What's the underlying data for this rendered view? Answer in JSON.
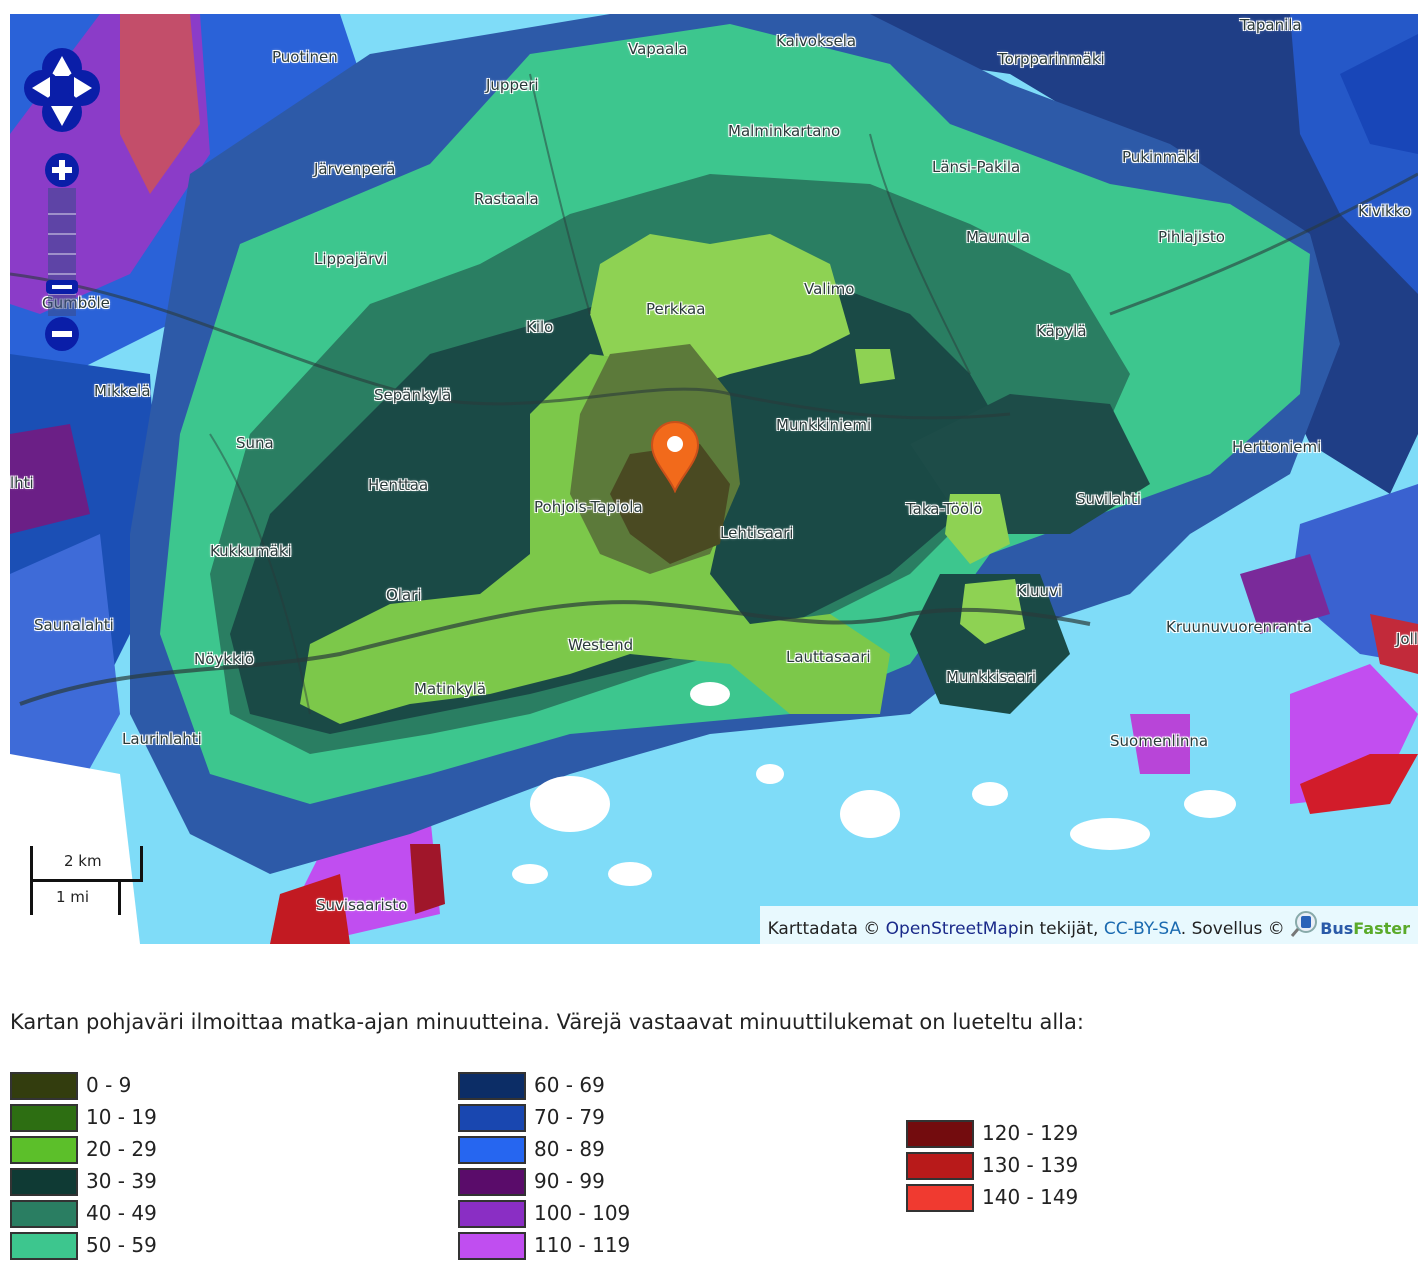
{
  "map": {
    "places": [
      {
        "name": "Puotinen"
      },
      {
        "name": "Vapaala"
      },
      {
        "name": "Kaivoksela"
      },
      {
        "name": "Tapanila"
      },
      {
        "name": "Jupperi"
      },
      {
        "name": "Torpparinmäki"
      },
      {
        "name": "Malminkartano"
      },
      {
        "name": "Järvenperä"
      },
      {
        "name": "Länsi-Pakila"
      },
      {
        "name": "Pukinmäki"
      },
      {
        "name": "Rastaala"
      },
      {
        "name": "Kivikko"
      },
      {
        "name": "Maunula"
      },
      {
        "name": "Pihlajisto"
      },
      {
        "name": "Lippajärvi"
      },
      {
        "name": "Valimo"
      },
      {
        "name": "Perkkaa"
      },
      {
        "name": "Gumböle"
      },
      {
        "name": "Kilo"
      },
      {
        "name": "Käpylä"
      },
      {
        "name": "Mikkelä"
      },
      {
        "name": "Sepänkylä"
      },
      {
        "name": "Munkkiniemi"
      },
      {
        "name": "Suna"
      },
      {
        "name": "Herttoniemi"
      },
      {
        "name": "Henttaa"
      },
      {
        "name": "lhti"
      },
      {
        "name": "Pohjois-Tapiola"
      },
      {
        "name": "Suvilahti"
      },
      {
        "name": "Taka-Töölö"
      },
      {
        "name": "Lehtisaari"
      },
      {
        "name": "Kukkumäki"
      },
      {
        "name": "Kluuvi"
      },
      {
        "name": "Olari"
      },
      {
        "name": "Saunalahti"
      },
      {
        "name": "Kruunuvuorenranta"
      },
      {
        "name": "Joll"
      },
      {
        "name": "Westend"
      },
      {
        "name": "Nöykkiö"
      },
      {
        "name": "Lauttasaari"
      },
      {
        "name": "Matinkylä"
      },
      {
        "name": "Munkkisaari"
      },
      {
        "name": "Laurinlahti"
      },
      {
        "name": "Suomenlinna"
      },
      {
        "name": "Suvisaaristo"
      }
    ],
    "scale": {
      "km_label": "2 km",
      "mi_label": "1 mi"
    },
    "attribution": {
      "prefix": "Karttadata © ",
      "osm_link": "OpenStreetMap",
      "osm_suffix": "in tekijät, ",
      "license_link": "CC-BY-SA",
      "app_text": ". Sovellus © ",
      "brand": "BusFaster"
    },
    "colors": {
      "water": "#7fdcf8",
      "marker": "#f26a1b"
    }
  },
  "caption": "Kartan pohjaväri ilmoittaa matka-ajan minuutteina. Värejä vastaavat minuuttilukemat on lueteltu alla:",
  "legend": {
    "col1": [
      {
        "label": "0 - 9",
        "color": "#333d0e"
      },
      {
        "label": "10 - 19",
        "color": "#2d6e12"
      },
      {
        "label": "20 - 29",
        "color": "#5cbf2a"
      },
      {
        "label": "30 - 39",
        "color": "#0f3a34"
      },
      {
        "label": "40 - 49",
        "color": "#2a7e62"
      },
      {
        "label": "50 - 59",
        "color": "#3dc68e"
      }
    ],
    "col2": [
      {
        "label": "60 - 69",
        "color": "#0c2d66"
      },
      {
        "label": "70 - 79",
        "color": "#1947b0"
      },
      {
        "label": "80 - 89",
        "color": "#2666f0"
      },
      {
        "label": "90 - 99",
        "color": "#5a0c6a"
      },
      {
        "label": "100 - 109",
        "color": "#8a2ec4"
      },
      {
        "label": "110 - 119",
        "color": "#c04ef0"
      }
    ],
    "col3": [
      {
        "label": "120 - 129",
        "color": "#730c0e"
      },
      {
        "label": "130 - 139",
        "color": "#b81a1a"
      },
      {
        "label": "140 - 149",
        "color": "#f03a30"
      }
    ]
  }
}
